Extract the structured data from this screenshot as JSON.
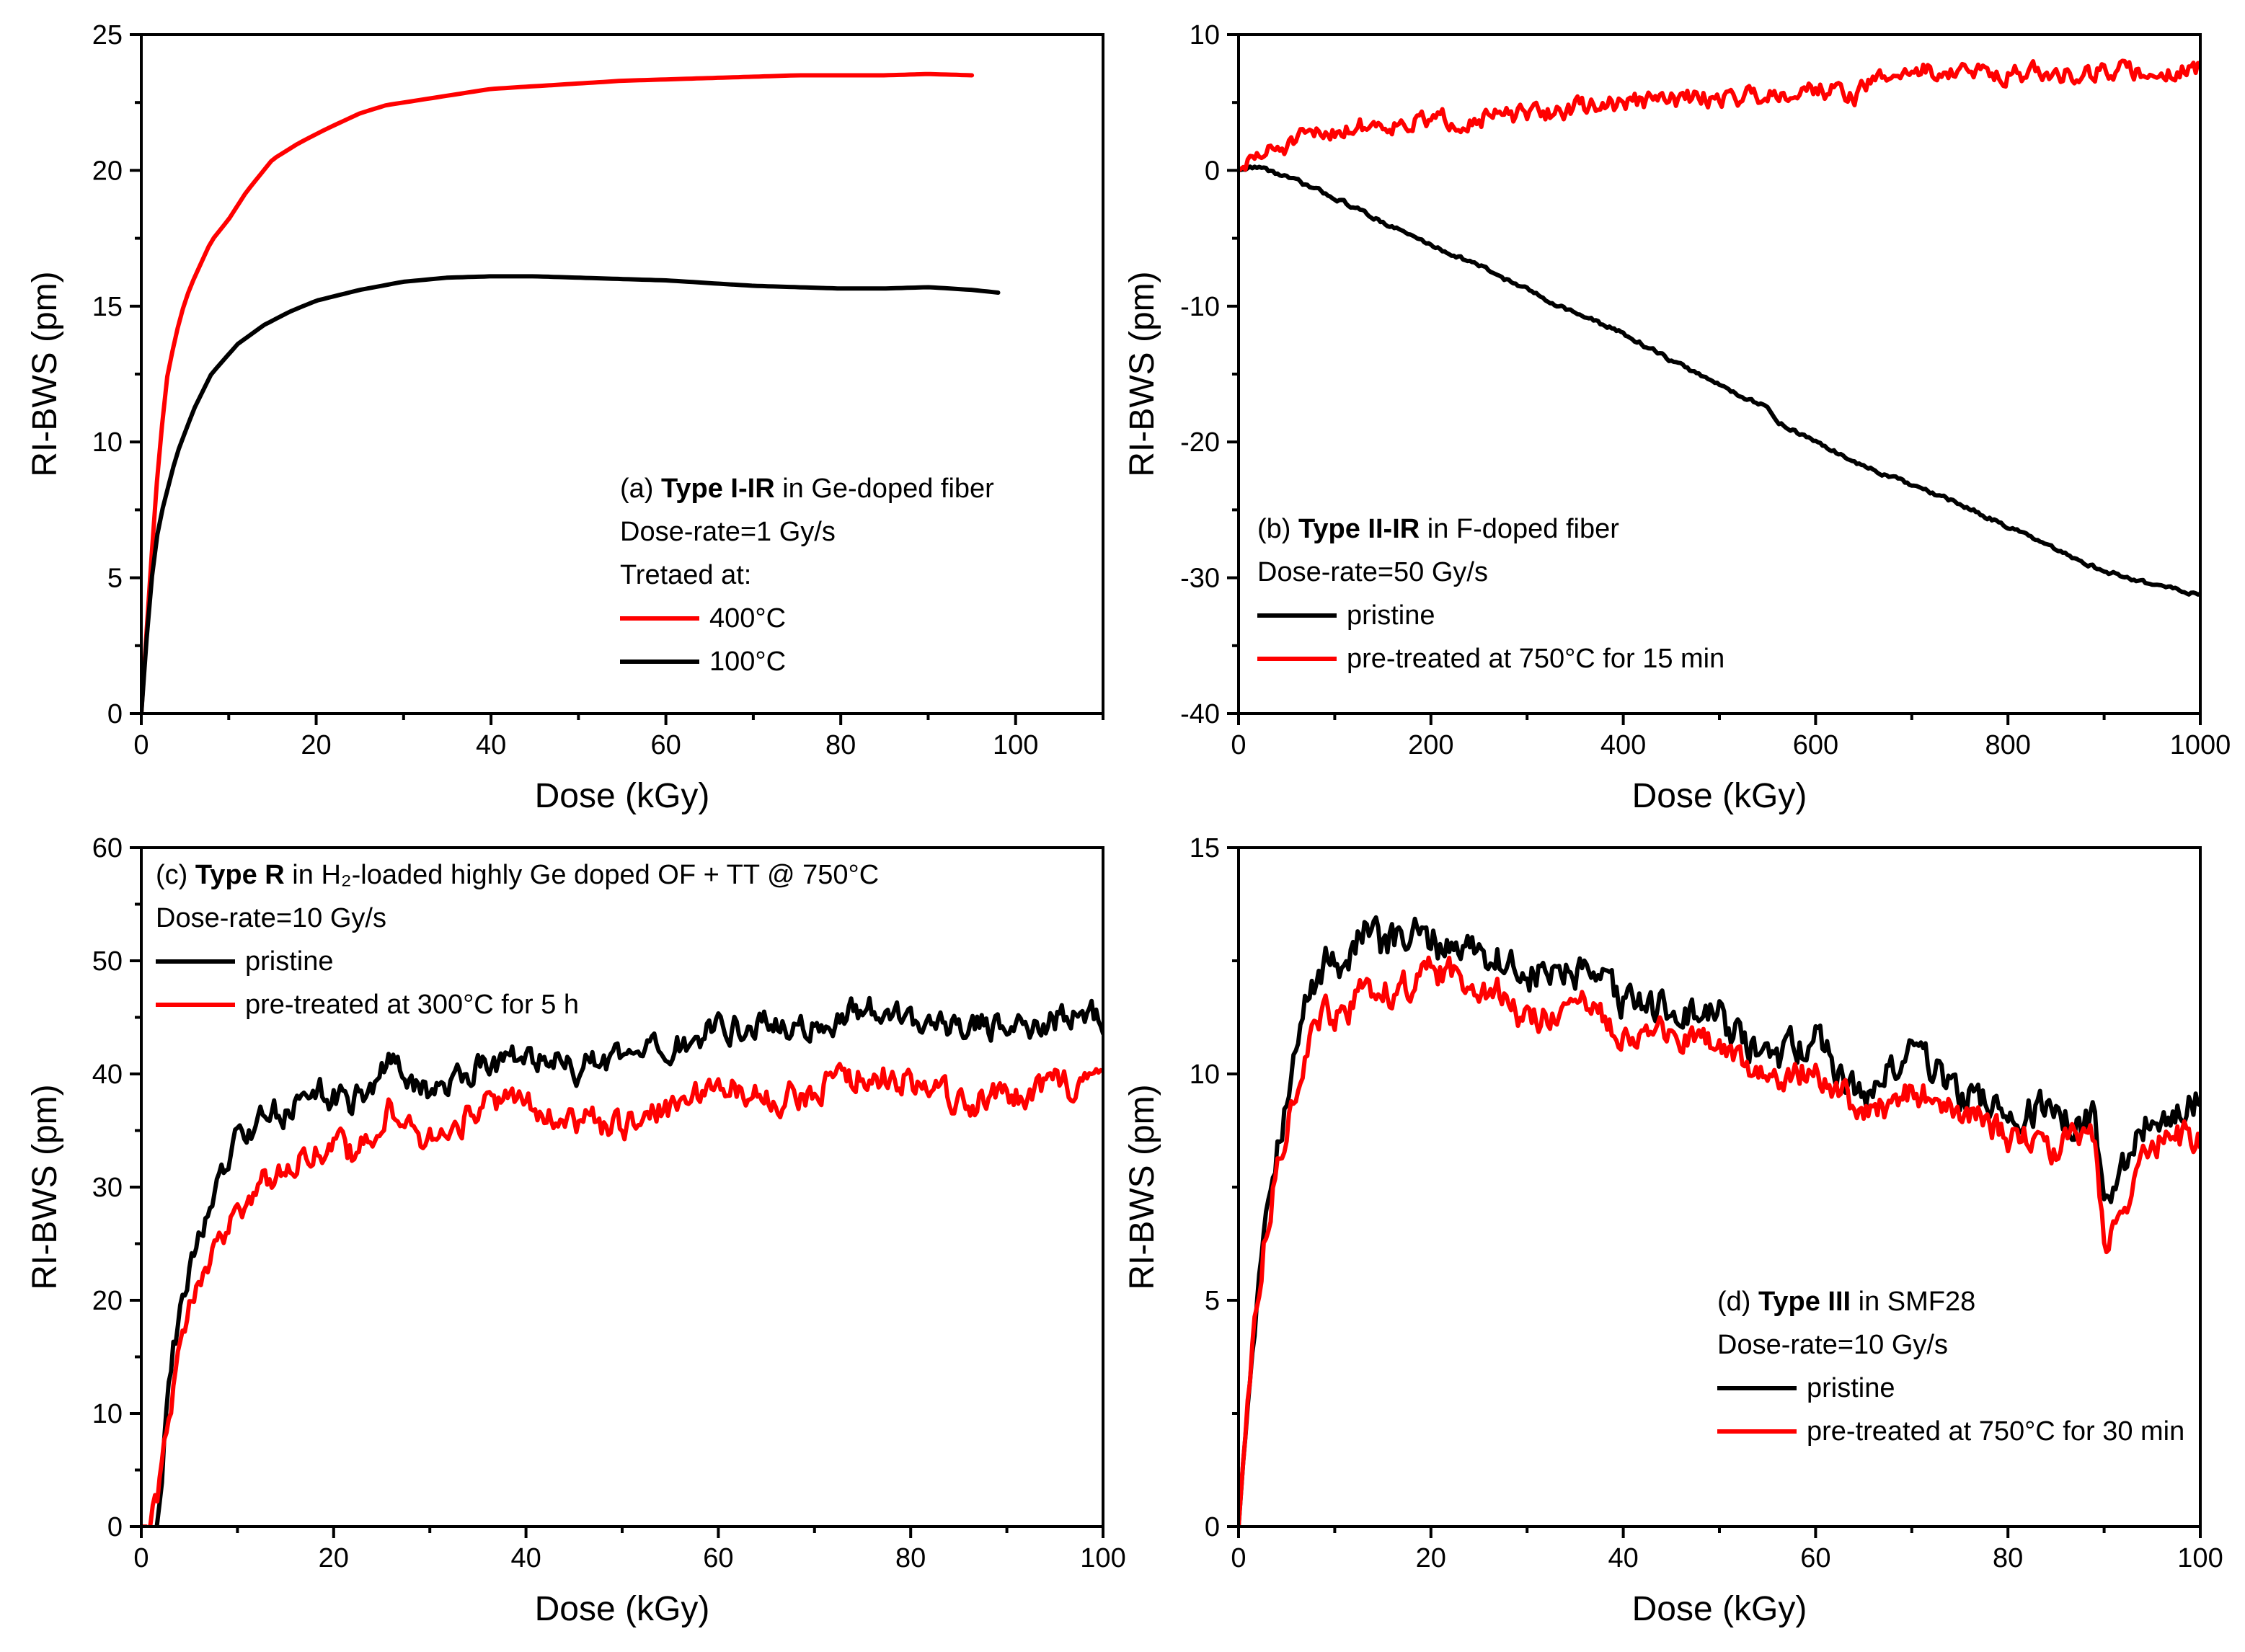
{
  "chart_data": [
    {
      "id": "a",
      "type": "line",
      "xlabel": "Dose (kGy)",
      "ylabel": "RI-BWS (pm)",
      "xlim": [
        0,
        110
      ],
      "ylim": [
        0,
        25
      ],
      "xticks": [
        0,
        20,
        40,
        60,
        80,
        100
      ],
      "yticks": [
        0,
        5,
        10,
        15,
        20,
        25
      ],
      "legend_position": "bottom-right",
      "annotation": {
        "prefix": "(a) ",
        "bold": "Type I-IR",
        "suffix": " in Ge-doped fiber",
        "lines": [
          "Dose-rate=1 Gy/s",
          "Tretaed at:"
        ]
      },
      "series": [
        {
          "name": "400°C",
          "color": "#ff0000",
          "noise": 0,
          "x": [
            0,
            1,
            2,
            3,
            4,
            5,
            6,
            8,
            10,
            12,
            15,
            18,
            21,
            25,
            28,
            32,
            36,
            40,
            45,
            50,
            55,
            60,
            65,
            70,
            75,
            80,
            85,
            90,
            95
          ],
          "y": [
            0,
            5,
            9.5,
            12.5,
            14,
            15.2,
            16,
            17.4,
            18.2,
            19.2,
            20.4,
            21,
            21.5,
            22.1,
            22.4,
            22.6,
            22.8,
            23.0,
            23.1,
            23.2,
            23.3,
            23.35,
            23.4,
            23.45,
            23.5,
            23.5,
            23.5,
            23.55,
            23.5
          ]
        },
        {
          "name": "100°C",
          "color": "#000000",
          "noise": 0,
          "x": [
            0,
            1,
            2,
            4,
            6,
            8,
            11,
            14,
            17,
            20,
            25,
            30,
            35,
            40,
            45,
            50,
            55,
            60,
            65,
            70,
            75,
            80,
            85,
            90,
            95,
            98
          ],
          "y": [
            0,
            4.5,
            7,
            9.5,
            11.2,
            12.5,
            13.6,
            14.3,
            14.8,
            15.2,
            15.6,
            15.9,
            16.05,
            16.1,
            16.1,
            16.05,
            16.0,
            15.95,
            15.85,
            15.75,
            15.7,
            15.65,
            15.65,
            15.7,
            15.6,
            15.5
          ]
        }
      ]
    },
    {
      "id": "b",
      "type": "line",
      "xlabel": "Dose (kGy)",
      "ylabel": "RI-BWS (pm)",
      "xlim": [
        0,
        1000
      ],
      "ylim": [
        -40,
        10
      ],
      "xticks": [
        0,
        200,
        400,
        600,
        800,
        1000
      ],
      "yticks": [
        -40,
        -30,
        -20,
        -10,
        0,
        10
      ],
      "legend_position": "bottom-left",
      "annotation": {
        "prefix": "(b) ",
        "bold": "Type II-IR",
        "suffix": " in F-doped fiber",
        "lines": [
          "Dose-rate=50 Gy/s"
        ]
      },
      "series": [
        {
          "name": "pristine",
          "color": "#000000",
          "noise": 0.25,
          "x": [
            0,
            20,
            50,
            100,
            150,
            200,
            250,
            300,
            350,
            400,
            450,
            500,
            550,
            560,
            600,
            650,
            700,
            750,
            800,
            850,
            900,
            950,
            1000
          ],
          "y": [
            0,
            0.3,
            -0.5,
            -2,
            -3.8,
            -5.5,
            -7,
            -8.8,
            -10.5,
            -12,
            -14,
            -15.8,
            -17.5,
            -18.5,
            -20,
            -21.8,
            -23.2,
            -24.6,
            -26.2,
            -28,
            -29.5,
            -30.5,
            -31.2
          ]
        },
        {
          "name": "pre-treated at 750°C for 15 min",
          "color": "#ff0000",
          "noise": 1.2,
          "x": [
            0,
            20,
            50,
            100,
            150,
            200,
            250,
            300,
            350,
            400,
            450,
            500,
            550,
            600,
            640,
            660,
            700,
            750,
            800,
            850,
            900,
            950,
            1000
          ],
          "y": [
            0,
            1,
            1.8,
            3,
            3.5,
            3.6,
            3.9,
            4.0,
            4.6,
            5.0,
            5.2,
            5.4,
            5.7,
            6.1,
            5.5,
            6.6,
            7.4,
            7.2,
            7.2,
            7.0,
            7.4,
            7.1,
            7.6
          ]
        }
      ]
    },
    {
      "id": "c",
      "type": "line",
      "xlabel": "Dose (kGy)",
      "ylabel": "RI-BWS (pm)",
      "xlim": [
        0,
        100
      ],
      "ylim": [
        0,
        60
      ],
      "xticks": [
        0,
        20,
        40,
        60,
        80,
        100
      ],
      "yticks": [
        0,
        10,
        20,
        30,
        40,
        50,
        60
      ],
      "legend_position": "top-left",
      "annotation": {
        "prefix": "(c) ",
        "bold": "Type R",
        "suffix": " in H₂-loaded highly Ge doped OF + TT @ 750°C",
        "lines": [
          "Dose-rate=10 Gy/s"
        ]
      },
      "series": [
        {
          "name": "pristine",
          "color": "#000000",
          "noise": 2.2,
          "x": [
            0,
            1.5,
            2,
            3,
            4,
            5,
            6,
            8,
            10,
            12,
            15,
            18,
            22,
            26,
            30,
            35,
            40,
            45,
            50,
            55,
            60,
            65,
            70,
            75,
            80,
            85,
            90,
            95,
            100
          ],
          "y": [
            0,
            0,
            4,
            14,
            19,
            22,
            26,
            30,
            34,
            35.5,
            37,
            38.5,
            37.5,
            41,
            38,
            41,
            41.5,
            40.5,
            41,
            42,
            44,
            44.5,
            44,
            45.5,
            45,
            44.5,
            44,
            45,
            45
          ]
        },
        {
          "name": "pre-treated at 300°C for 5 h",
          "color": "#ff0000",
          "noise": 2.2,
          "x": [
            0,
            1,
            2,
            3,
            4,
            5,
            6,
            8,
            10,
            12,
            15,
            18,
            22,
            26,
            30,
            35,
            40,
            45,
            50,
            55,
            60,
            65,
            70,
            75,
            80,
            85,
            90,
            95,
            100
          ],
          "y": [
            0,
            0,
            4,
            11,
            15,
            19,
            22,
            25,
            28,
            30,
            32,
            33.5,
            33,
            37,
            34,
            37,
            37.5,
            36,
            35,
            37,
            39,
            38,
            38.5,
            40,
            39.5,
            37.5,
            38,
            39,
            38.5
          ]
        }
      ]
    },
    {
      "id": "d",
      "type": "line",
      "xlabel": "Dose (kGy)",
      "ylabel": "RI-BWS (pm)",
      "xlim": [
        0,
        100
      ],
      "ylim": [
        0,
        15
      ],
      "xticks": [
        0,
        20,
        40,
        60,
        80,
        100
      ],
      "yticks": [
        0,
        5,
        10,
        15
      ],
      "legend_position": "bottom-right",
      "annotation": {
        "prefix": "(d) ",
        "bold": "Type III",
        "suffix": " in SMF28",
        "lines": [
          "Dose-rate=10 Gy/s"
        ]
      },
      "series": [
        {
          "name": "pristine",
          "color": "#000000",
          "noise": 0.7,
          "x": [
            0,
            1,
            2,
            3,
            5,
            7,
            9,
            11,
            13,
            15,
            18,
            20,
            25,
            30,
            35,
            40,
            45,
            50,
            55,
            60,
            65,
            70,
            75,
            80,
            85,
            89,
            90,
            95,
            100
          ],
          "y": [
            0,
            3,
            5.5,
            7.5,
            9.5,
            11.5,
            12.5,
            12.5,
            13.2,
            12.8,
            13,
            12.9,
            12.8,
            12.2,
            12.2,
            11.6,
            11.4,
            11.2,
            10.2,
            10.8,
            9.4,
            10.6,
            9.6,
            9.2,
            9.1,
            9.0,
            7.5,
            9.0,
            9.5
          ]
        },
        {
          "name": "pre-treated at 750°C for 30 min",
          "color": "#ff0000",
          "noise": 0.6,
          "x": [
            0,
            1,
            2,
            3,
            5,
            7,
            9,
            11,
            13,
            15,
            18,
            20,
            25,
            30,
            35,
            40,
            45,
            50,
            55,
            60,
            65,
            70,
            75,
            80,
            85,
            89,
            90,
            95,
            100
          ],
          "y": [
            0,
            3,
            5.2,
            6.8,
            9,
            10.5,
            11.3,
            11.2,
            11.9,
            11.8,
            12,
            12.2,
            12.1,
            11.2,
            11.5,
            11.0,
            10.8,
            10.6,
            9.8,
            10.2,
            9.0,
            9.6,
            9.2,
            8.6,
            8.4,
            8.5,
            6.2,
            8.6,
            8.5
          ]
        }
      ]
    }
  ]
}
